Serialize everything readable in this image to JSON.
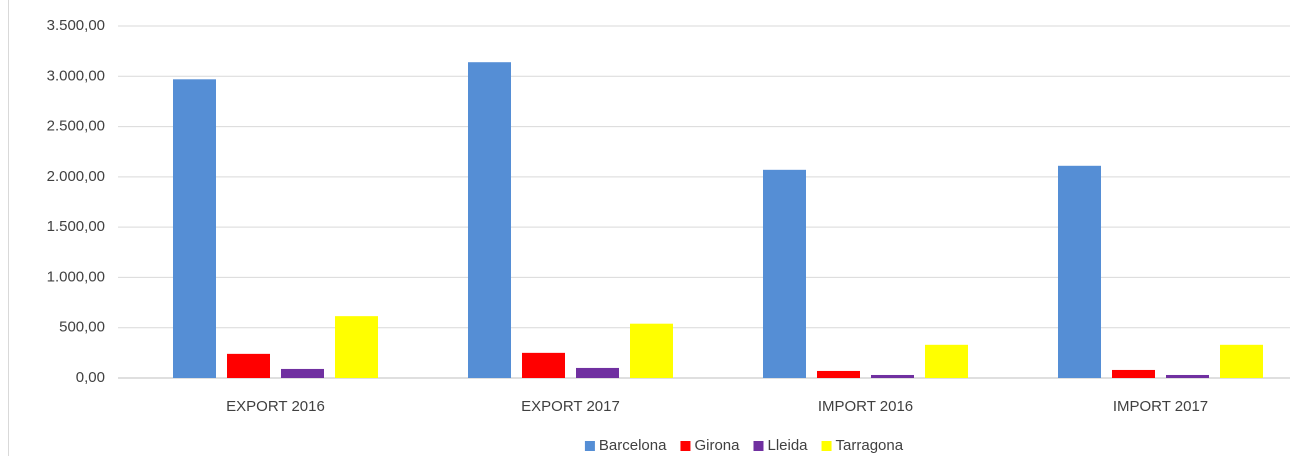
{
  "chart_data": {
    "type": "bar",
    "categories": [
      "EXPORT 2016",
      "EXPORT 2017",
      "IMPORT 2016",
      "IMPORT 2017"
    ],
    "series": [
      {
        "name": "Barcelona",
        "color": "#558ed5",
        "values": [
          2970,
          3140,
          2070,
          2110
        ]
      },
      {
        "name": "Girona",
        "color": "#ff0000",
        "values": [
          240,
          250,
          70,
          80
        ]
      },
      {
        "name": "Lleida",
        "color": "#7030a0",
        "values": [
          90,
          100,
          30,
          30
        ]
      },
      {
        "name": "Tarragona",
        "color": "#ffff00",
        "values": [
          615,
          540,
          330,
          330
        ]
      }
    ],
    "ylim": [
      0,
      3500
    ],
    "yticks": [
      {
        "value": 0,
        "label": "0,00"
      },
      {
        "value": 500,
        "label": "500,00"
      },
      {
        "value": 1000,
        "label": "1.000,00"
      },
      {
        "value": 1500,
        "label": "1.500,00"
      },
      {
        "value": 2000,
        "label": "2.000,00"
      },
      {
        "value": 2500,
        "label": "2.500,00"
      },
      {
        "value": 3000,
        "label": "3.000,00"
      },
      {
        "value": 3500,
        "label": "3.500,00"
      }
    ],
    "grid": true,
    "legend": "bottom"
  }
}
